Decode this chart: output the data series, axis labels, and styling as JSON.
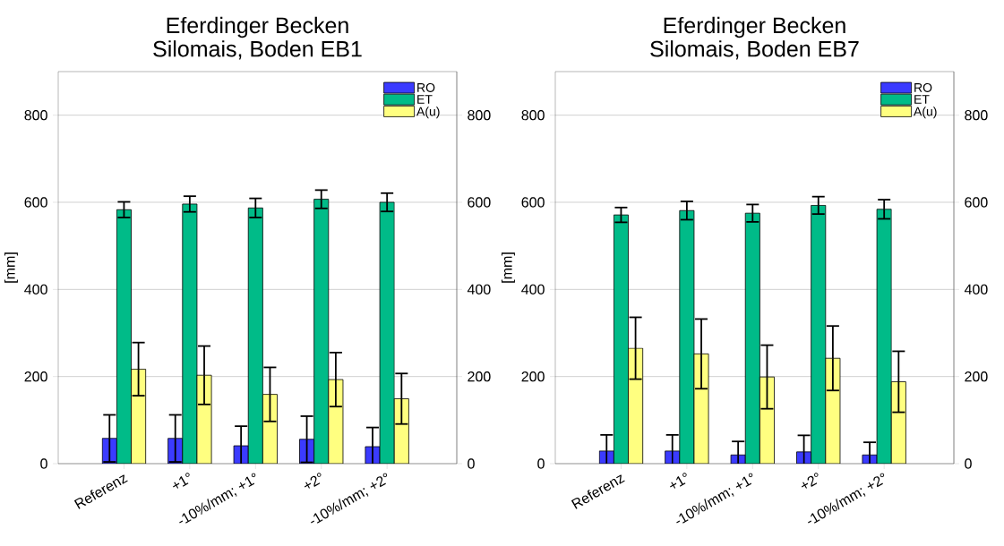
{
  "chart_data": [
    {
      "type": "bar",
      "title": "Eferdinger Becken",
      "subtitle": "Silomais, Boden EB1",
      "ylabel": "[mm]",
      "categories": [
        "Referenz",
        "+1°",
        "-10%/mm; +1°",
        "+2°",
        "-10%/mm; +2°"
      ],
      "series": [
        {
          "name": "RO",
          "color": "#3b3bff",
          "values": [
            58,
            58,
            41,
            56,
            39
          ],
          "errors": [
            54,
            54,
            45,
            53,
            44
          ]
        },
        {
          "name": "ET",
          "color": "#00bb88",
          "values": [
            583,
            596,
            587,
            607,
            600
          ],
          "errors": [
            18,
            18,
            22,
            21,
            21
          ]
        },
        {
          "name": "A(u)",
          "color": "#ffff80",
          "values": [
            217,
            203,
            159,
            193,
            149
          ],
          "errors": [
            61,
            67,
            62,
            62,
            58
          ]
        }
      ],
      "ylim": [
        0,
        900
      ],
      "yticks": [
        0,
        200,
        400,
        600,
        800
      ],
      "y2lim": [
        0,
        900
      ],
      "y2ticks": [
        0,
        200,
        400,
        600,
        800
      ],
      "grid": "y",
      "legend": "top right"
    },
    {
      "type": "bar",
      "title": "Eferdinger Becken",
      "subtitle": "Silomais, Boden EB7",
      "ylabel": "[mm]",
      "categories": [
        "Referenz",
        "+1°",
        "-10%/mm; +1°",
        "+2°",
        "-10%/mm; +2°"
      ],
      "series": [
        {
          "name": "RO",
          "color": "#3b3bff",
          "values": [
            29,
            29,
            20,
            27,
            20
          ],
          "errors": [
            37,
            37,
            31,
            38,
            29
          ]
        },
        {
          "name": "ET",
          "color": "#00bb88",
          "values": [
            571,
            581,
            575,
            593,
            584
          ],
          "errors": [
            17,
            21,
            20,
            20,
            22
          ]
        },
        {
          "name": "A(u)",
          "color": "#ffff80",
          "values": [
            265,
            252,
            199,
            242,
            188
          ],
          "errors": [
            71,
            80,
            73,
            74,
            70
          ]
        }
      ],
      "ylim": [
        0,
        900
      ],
      "yticks": [
        0,
        200,
        400,
        600,
        800
      ],
      "y2lim": [
        0,
        900
      ],
      "y2ticks": [
        0,
        200,
        400,
        600,
        800
      ],
      "grid": "y",
      "legend": "top right"
    }
  ]
}
